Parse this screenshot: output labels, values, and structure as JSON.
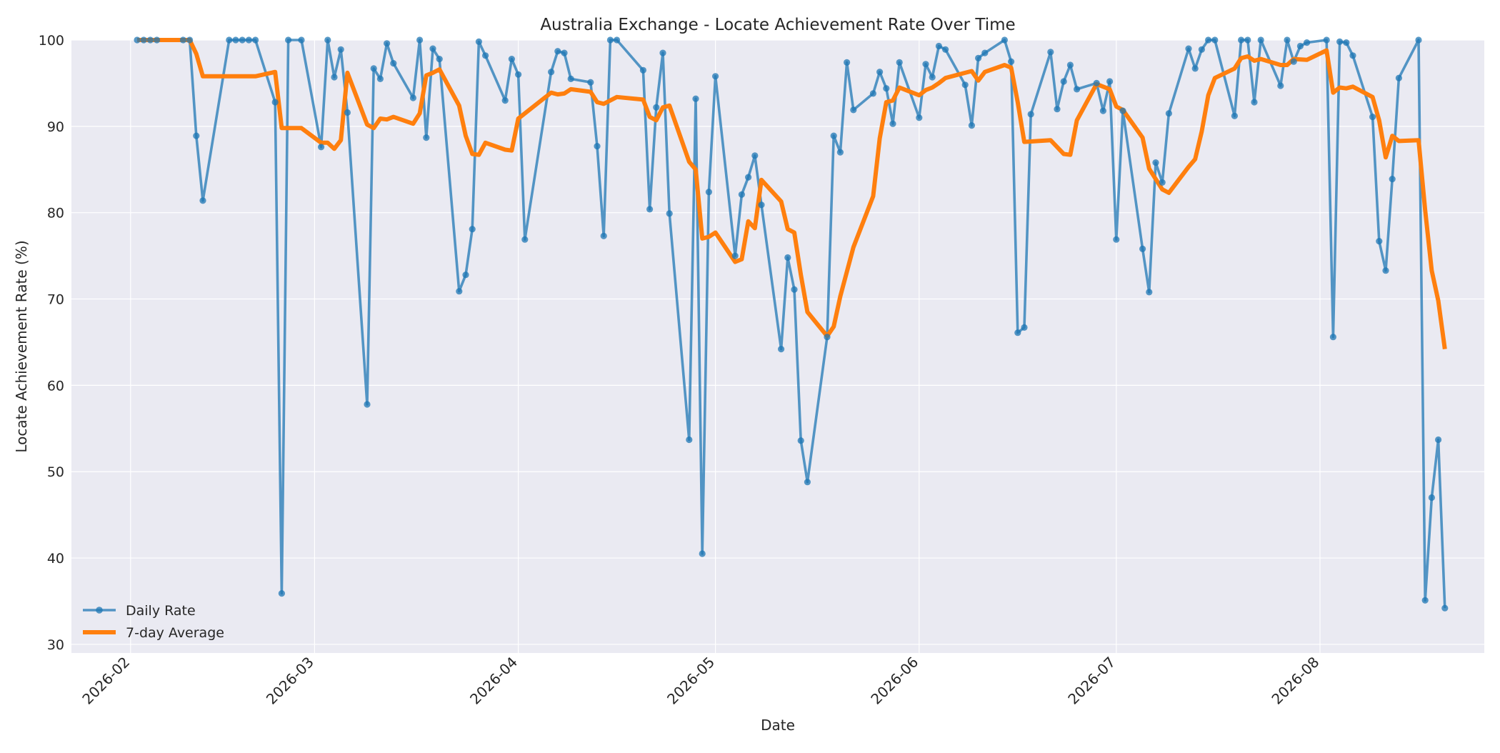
{
  "chart_data": {
    "type": "line",
    "title": "Australia Exchange - Locate Achievement Rate Over Time",
    "xlabel": "Date",
    "ylabel": "Locate Achievement Rate (%)",
    "ylim": [
      29,
      100
    ],
    "xlim": [
      "2026-01-23",
      "2026-08-26"
    ],
    "yticks": [
      30,
      40,
      50,
      60,
      70,
      80,
      90,
      100
    ],
    "xticks": [
      "2026-02",
      "2026-03",
      "2026-04",
      "2026-05",
      "2026-06",
      "2026-07",
      "2026-08"
    ],
    "grid": true,
    "legend_position": "lower left",
    "colors": {
      "daily": "#1f77b4",
      "average": "#ff7f0e",
      "background": "#eaeaf2",
      "grid": "#ffffff"
    },
    "series": [
      {
        "name": "Daily Rate",
        "style": "line-markers",
        "points": [
          [
            "2026-02-02",
            100
          ],
          [
            "2026-02-03",
            100
          ],
          [
            "2026-02-04",
            100
          ],
          [
            "2026-02-05",
            100
          ],
          [
            "2026-02-09",
            100
          ],
          [
            "2026-02-10",
            100
          ],
          [
            "2026-02-11",
            88.9
          ],
          [
            "2026-02-12",
            81.4
          ],
          [
            "2026-02-16",
            100
          ],
          [
            "2026-02-17",
            100
          ],
          [
            "2026-02-18",
            100
          ],
          [
            "2026-02-19",
            100
          ],
          [
            "2026-02-20",
            100
          ],
          [
            "2026-02-23",
            92.8
          ],
          [
            "2026-02-24",
            35.9
          ],
          [
            "2026-02-25",
            100
          ],
          [
            "2026-02-27",
            100
          ],
          [
            "2026-03-02",
            87.6
          ],
          [
            "2026-03-03",
            100
          ],
          [
            "2026-03-04",
            95.7
          ],
          [
            "2026-03-05",
            98.9
          ],
          [
            "2026-03-06",
            91.6
          ],
          [
            "2026-03-09",
            57.8
          ],
          [
            "2026-03-10",
            96.7
          ],
          [
            "2026-03-11",
            95.5
          ],
          [
            "2026-03-12",
            99.6
          ],
          [
            "2026-03-13",
            97.3
          ],
          [
            "2026-03-16",
            93.3
          ],
          [
            "2026-03-17",
            100
          ],
          [
            "2026-03-18",
            88.7
          ],
          [
            "2026-03-19",
            99
          ],
          [
            "2026-03-20",
            97.8
          ],
          [
            "2026-03-23",
            70.9
          ],
          [
            "2026-03-24",
            72.8
          ],
          [
            "2026-03-25",
            78.1
          ],
          [
            "2026-03-26",
            99.8
          ],
          [
            "2026-03-27",
            98.2
          ],
          [
            "2026-03-30",
            93
          ],
          [
            "2026-03-31",
            97.8
          ],
          [
            "2026-04-01",
            96
          ],
          [
            "2026-04-02",
            76.9
          ],
          [
            "2026-04-06",
            96.3
          ],
          [
            "2026-04-07",
            98.7
          ],
          [
            "2026-04-08",
            98.5
          ],
          [
            "2026-04-09",
            95.5
          ],
          [
            "2026-04-12",
            95.1
          ],
          [
            "2026-04-13",
            87.7
          ],
          [
            "2026-04-14",
            77.3
          ],
          [
            "2026-04-15",
            100
          ],
          [
            "2026-04-16",
            100
          ],
          [
            "2026-04-20",
            96.5
          ],
          [
            "2026-04-21",
            80.4
          ],
          [
            "2026-04-22",
            92.2
          ],
          [
            "2026-04-23",
            98.5
          ],
          [
            "2026-04-24",
            79.9
          ],
          [
            "2026-04-27",
            53.7
          ],
          [
            "2026-04-28",
            93.2
          ],
          [
            "2026-04-29",
            40.5
          ],
          [
            "2026-04-30",
            82.4
          ],
          [
            "2026-05-01",
            95.8
          ],
          [
            "2026-05-04",
            75
          ],
          [
            "2026-05-05",
            82.1
          ],
          [
            "2026-05-06",
            84.1
          ],
          [
            "2026-05-07",
            86.6
          ],
          [
            "2026-05-08",
            80.9
          ],
          [
            "2026-05-11",
            64.2
          ],
          [
            "2026-05-12",
            74.8
          ],
          [
            "2026-05-13",
            71.1
          ],
          [
            "2026-05-14",
            53.6
          ],
          [
            "2026-05-15",
            48.8
          ],
          [
            "2026-05-18",
            65.6
          ],
          [
            "2026-05-19",
            88.9
          ],
          [
            "2026-05-20",
            87
          ],
          [
            "2026-05-21",
            97.4
          ],
          [
            "2026-05-22",
            91.9
          ],
          [
            "2026-05-25",
            93.8
          ],
          [
            "2026-05-26",
            96.3
          ],
          [
            "2026-05-27",
            94.4
          ],
          [
            "2026-05-28",
            90.3
          ],
          [
            "2026-05-29",
            97.4
          ],
          [
            "2026-06-01",
            91
          ],
          [
            "2026-06-02",
            97.2
          ],
          [
            "2026-06-03",
            95.7
          ],
          [
            "2026-06-04",
            99.3
          ],
          [
            "2026-06-05",
            98.9
          ],
          [
            "2026-06-08",
            94.8
          ],
          [
            "2026-06-09",
            90.1
          ],
          [
            "2026-06-10",
            97.9
          ],
          [
            "2026-06-11",
            98.5
          ],
          [
            "2026-06-14",
            100
          ],
          [
            "2026-06-15",
            97.5
          ],
          [
            "2026-06-16",
            66.1
          ],
          [
            "2026-06-17",
            66.7
          ],
          [
            "2026-06-18",
            91.4
          ],
          [
            "2026-06-21",
            98.6
          ],
          [
            "2026-06-22",
            92
          ],
          [
            "2026-06-23",
            95.2
          ],
          [
            "2026-06-24",
            97.1
          ],
          [
            "2026-06-25",
            94.3
          ],
          [
            "2026-06-28",
            95
          ],
          [
            "2026-06-29",
            91.8
          ],
          [
            "2026-06-30",
            95.2
          ],
          [
            "2026-07-01",
            76.9
          ],
          [
            "2026-07-02",
            91.8
          ],
          [
            "2026-07-05",
            75.8
          ],
          [
            "2026-07-06",
            70.8
          ],
          [
            "2026-07-07",
            85.8
          ],
          [
            "2026-07-08",
            83.5
          ],
          [
            "2026-07-09",
            91.5
          ],
          [
            "2026-07-12",
            99
          ],
          [
            "2026-07-13",
            96.7
          ],
          [
            "2026-07-14",
            98.9
          ],
          [
            "2026-07-15",
            100
          ],
          [
            "2026-07-16",
            100
          ],
          [
            "2026-07-19",
            91.2
          ],
          [
            "2026-07-20",
            100
          ],
          [
            "2026-07-21",
            100
          ],
          [
            "2026-07-22",
            92.8
          ],
          [
            "2026-07-23",
            100
          ],
          [
            "2026-07-26",
            94.7
          ],
          [
            "2026-07-27",
            100
          ],
          [
            "2026-07-28",
            97.5
          ],
          [
            "2026-07-29",
            99.3
          ],
          [
            "2026-07-30",
            99.7
          ],
          [
            "2026-08-02",
            100
          ],
          [
            "2026-08-03",
            65.6
          ],
          [
            "2026-08-04",
            99.8
          ],
          [
            "2026-08-05",
            99.7
          ],
          [
            "2026-08-06",
            98.2
          ],
          [
            "2026-08-09",
            91.1
          ],
          [
            "2026-08-10",
            76.7
          ],
          [
            "2026-08-11",
            73.3
          ],
          [
            "2026-08-12",
            83.9
          ],
          [
            "2026-08-13",
            95.6
          ],
          [
            "2026-08-16",
            100
          ],
          [
            "2026-08-17",
            35.1
          ],
          [
            "2026-08-18",
            47
          ],
          [
            "2026-08-19",
            53.7
          ],
          [
            "2026-08-20",
            34.2
          ]
        ]
      },
      {
        "name": "7-day Average",
        "style": "line",
        "points": [
          [
            "2026-02-02",
            100
          ],
          [
            "2026-02-03",
            100
          ],
          [
            "2026-02-04",
            100
          ],
          [
            "2026-02-05",
            100
          ],
          [
            "2026-02-09",
            100
          ],
          [
            "2026-02-10",
            100
          ],
          [
            "2026-02-11",
            98.4
          ],
          [
            "2026-02-12",
            95.8
          ],
          [
            "2026-02-16",
            95.8
          ],
          [
            "2026-02-17",
            95.8
          ],
          [
            "2026-02-18",
            95.8
          ],
          [
            "2026-02-19",
            95.8
          ],
          [
            "2026-02-20",
            95.8
          ],
          [
            "2026-02-23",
            96.3
          ],
          [
            "2026-02-24",
            89.8
          ],
          [
            "2026-02-25",
            89.8
          ],
          [
            "2026-02-27",
            89.8
          ],
          [
            "2026-03-02",
            88.1
          ],
          [
            "2026-03-03",
            88.1
          ],
          [
            "2026-03-04",
            87.4
          ],
          [
            "2026-03-05",
            88.4
          ],
          [
            "2026-03-06",
            96.2
          ],
          [
            "2026-03-09",
            90.2
          ],
          [
            "2026-03-10",
            89.8
          ],
          [
            "2026-03-11",
            90.9
          ],
          [
            "2026-03-12",
            90.8
          ],
          [
            "2026-03-13",
            91.1
          ],
          [
            "2026-03-16",
            90.3
          ],
          [
            "2026-03-17",
            91.5
          ],
          [
            "2026-03-18",
            95.9
          ],
          [
            "2026-03-19",
            96.2
          ],
          [
            "2026-03-20",
            96.6
          ],
          [
            "2026-03-23",
            92.4
          ],
          [
            "2026-03-24",
            88.9
          ],
          [
            "2026-03-25",
            86.8
          ],
          [
            "2026-03-26",
            86.7
          ],
          [
            "2026-03-27",
            88.1
          ],
          [
            "2026-03-30",
            87.3
          ],
          [
            "2026-03-31",
            87.2
          ],
          [
            "2026-04-01",
            90.9
          ],
          [
            "2026-04-06",
            93.9
          ],
          [
            "2026-04-07",
            93.7
          ],
          [
            "2026-04-08",
            93.8
          ],
          [
            "2026-04-09",
            94.3
          ],
          [
            "2026-04-12",
            94
          ],
          [
            "2026-04-13",
            92.8
          ],
          [
            "2026-04-14",
            92.6
          ],
          [
            "2026-04-16",
            93.4
          ],
          [
            "2026-04-20",
            93.1
          ],
          [
            "2026-04-21",
            91.1
          ],
          [
            "2026-04-22",
            90.7
          ],
          [
            "2026-04-23",
            92.2
          ],
          [
            "2026-04-24",
            92.4
          ],
          [
            "2026-04-27",
            85.9
          ],
          [
            "2026-04-28",
            85
          ],
          [
            "2026-04-29",
            77
          ],
          [
            "2026-04-30",
            77.2
          ],
          [
            "2026-05-01",
            77.7
          ],
          [
            "2026-05-04",
            74.3
          ],
          [
            "2026-05-05",
            74.6
          ],
          [
            "2026-05-06",
            79
          ],
          [
            "2026-05-07",
            78.2
          ],
          [
            "2026-05-08",
            83.8
          ],
          [
            "2026-05-11",
            81.3
          ],
          [
            "2026-05-12",
            78.1
          ],
          [
            "2026-05-13",
            77.7
          ],
          [
            "2026-05-14",
            72.8
          ],
          [
            "2026-05-15",
            68.5
          ],
          [
            "2026-05-18",
            65.7
          ],
          [
            "2026-05-19",
            66.8
          ],
          [
            "2026-05-20",
            70.3
          ],
          [
            "2026-05-22",
            76
          ],
          [
            "2026-05-25",
            81.9
          ],
          [
            "2026-05-26",
            88.6
          ],
          [
            "2026-05-27",
            92.8
          ],
          [
            "2026-05-28",
            93
          ],
          [
            "2026-05-29",
            94.5
          ],
          [
            "2026-06-01",
            93.6
          ],
          [
            "2026-06-02",
            94.2
          ],
          [
            "2026-06-03",
            94.5
          ],
          [
            "2026-06-04",
            95
          ],
          [
            "2026-06-05",
            95.6
          ],
          [
            "2026-06-08",
            96.2
          ],
          [
            "2026-06-09",
            96.4
          ],
          [
            "2026-06-10",
            95.3
          ],
          [
            "2026-06-11",
            96.3
          ],
          [
            "2026-06-14",
            97.1
          ],
          [
            "2026-06-15",
            96.8
          ],
          [
            "2026-06-16",
            92.8
          ],
          [
            "2026-06-17",
            88.2
          ],
          [
            "2026-06-21",
            88.4
          ],
          [
            "2026-06-22",
            87.6
          ],
          [
            "2026-06-23",
            86.8
          ],
          [
            "2026-06-24",
            86.7
          ],
          [
            "2026-06-25",
            90.7
          ],
          [
            "2026-06-28",
            94.9
          ],
          [
            "2026-06-29",
            94.6
          ],
          [
            "2026-06-30",
            94.3
          ],
          [
            "2026-07-01",
            92.3
          ],
          [
            "2026-07-02",
            91.9
          ],
          [
            "2026-07-05",
            88.7
          ],
          [
            "2026-07-06",
            85.1
          ],
          [
            "2026-07-07",
            83.9
          ],
          [
            "2026-07-08",
            82.7
          ],
          [
            "2026-07-09",
            82.3
          ],
          [
            "2026-07-12",
            85.3
          ],
          [
            "2026-07-13",
            86.2
          ],
          [
            "2026-07-14",
            89.4
          ],
          [
            "2026-07-15",
            93.6
          ],
          [
            "2026-07-16",
            95.6
          ],
          [
            "2026-07-19",
            96.7
          ],
          [
            "2026-07-20",
            97.9
          ],
          [
            "2026-07-21",
            98.1
          ],
          [
            "2026-07-22",
            97.6
          ],
          [
            "2026-07-23",
            97.8
          ],
          [
            "2026-07-26",
            97.1
          ],
          [
            "2026-07-27",
            97.1
          ],
          [
            "2026-07-28",
            97.8
          ],
          [
            "2026-07-30",
            97.7
          ],
          [
            "2026-08-02",
            98.8
          ],
          [
            "2026-08-03",
            93.9
          ],
          [
            "2026-08-04",
            94.5
          ],
          [
            "2026-08-05",
            94.4
          ],
          [
            "2026-08-06",
            94.6
          ],
          [
            "2026-08-09",
            93.4
          ],
          [
            "2026-08-10",
            90.7
          ],
          [
            "2026-08-11",
            86.4
          ],
          [
            "2026-08-12",
            88.9
          ],
          [
            "2026-08-13",
            88.3
          ],
          [
            "2026-08-16",
            88.4
          ],
          [
            "2026-08-17",
            80.3
          ],
          [
            "2026-08-18",
            73.3
          ],
          [
            "2026-08-19",
            69.8
          ],
          [
            "2026-08-20",
            64.2
          ]
        ]
      }
    ]
  }
}
